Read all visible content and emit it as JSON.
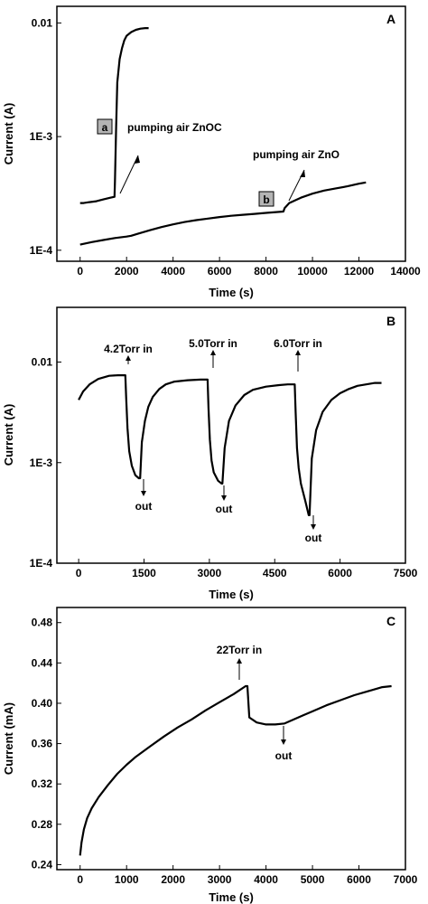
{
  "chart_data": [
    {
      "type": "line",
      "panel_label": "A",
      "xlabel": "Time (s)",
      "ylabel": "Current (A)",
      "y_scale": "log",
      "xlim": [
        -1000,
        14000
      ],
      "ylim": [
        8e-05,
        0.014
      ],
      "x_ticks": [
        0,
        2000,
        4000,
        6000,
        8000,
        10000,
        12000,
        14000
      ],
      "x_tick_labels": [
        "0",
        "2000",
        "4000",
        "6000",
        "8000",
        "10000",
        "12000",
        "14000"
      ],
      "y_ticks": [
        0.0001,
        0.001,
        0.01
      ],
      "y_tick_labels": [
        "1E-4",
        "1E-3",
        "0.01"
      ],
      "series": [
        {
          "x": [
            0,
            150,
            400,
            700,
            1000,
            1300,
            1480,
            1500,
            1550,
            1600,
            1700,
            1800,
            1900,
            2000,
            2200,
            2400,
            2600,
            2800,
            2950
          ],
          "y": [
            0.00026,
            0.00026,
            0.000265,
            0.00027,
            0.00028,
            0.00029,
            0.000295,
            0.0004,
            0.0012,
            0.003,
            0.0048,
            0.006,
            0.007,
            0.0077,
            0.0083,
            0.0087,
            0.0089,
            0.009,
            0.009
          ]
        },
        {
          "x": [
            0,
            500,
            1000,
            1500,
            2000,
            2200,
            2500,
            3000,
            3500,
            4000,
            4500,
            5000,
            5500,
            6000,
            6500,
            7000,
            7500,
            8000,
            8500,
            8750,
            8800,
            9000,
            9500,
            10000,
            10500,
            11000,
            11500,
            12000,
            12300
          ],
          "y": [
            0.000112,
            0.000118,
            0.000123,
            0.000128,
            0.000132,
            0.000134,
            0.00014,
            0.00015,
            0.00016,
            0.000169,
            0.000177,
            0.000184,
            0.00019,
            0.000196,
            0.000201,
            0.000205,
            0.000209,
            0.000213,
            0.000217,
            0.000219,
            0.000235,
            0.00026,
            0.00029,
            0.000315,
            0.000335,
            0.00035,
            0.000365,
            0.000385,
            0.000395
          ]
        }
      ],
      "annotations": [
        {
          "box": "a",
          "text": "pumping air  ZnOC"
        },
        {
          "box": "b",
          "text": "pumping air  ZnO"
        }
      ]
    },
    {
      "type": "line",
      "panel_label": "B",
      "xlabel": "Time (s)",
      "ylabel": "Current (A)",
      "y_scale": "log",
      "xlim": [
        -500,
        7500
      ],
      "ylim": [
        0.0001,
        0.035
      ],
      "x_ticks": [
        0,
        1500,
        3000,
        4500,
        6000,
        7500
      ],
      "x_tick_labels": [
        "0",
        "1500",
        "3000",
        "4500",
        "6000",
        "7500"
      ],
      "y_ticks": [
        0.0001,
        0.001,
        0.01
      ],
      "y_tick_labels": [
        "1E-4",
        "1E-3",
        "0.01"
      ],
      "series": [
        {
          "x": [
            0,
            100,
            250,
            450,
            700,
            900,
            1070,
            1090,
            1120,
            1160,
            1220,
            1300,
            1380,
            1410,
            1450,
            1520,
            1600,
            1700,
            1850,
            2000,
            2200,
            2500,
            2800,
            2960,
            2980,
            3010,
            3050,
            3100,
            3200,
            3280,
            3300,
            3350,
            3450,
            3600,
            3800,
            4000,
            4300,
            4600,
            4800,
            4960,
            4980,
            5010,
            5050,
            5100,
            5200,
            5280,
            5300,
            5350,
            5450,
            5600,
            5800,
            6000,
            6200,
            6400,
            6600,
            6800,
            6950
          ],
          "y": [
            0.0042,
            0.0051,
            0.006,
            0.0068,
            0.0073,
            0.0074,
            0.0074,
            0.0045,
            0.0022,
            0.0013,
            0.00093,
            0.00075,
            0.0007,
            0.0007,
            0.0016,
            0.0026,
            0.0036,
            0.0045,
            0.0054,
            0.006,
            0.0064,
            0.0066,
            0.0067,
            0.0067,
            0.0035,
            0.0017,
            0.00105,
            0.0008,
            0.00066,
            0.00062,
            0.00062,
            0.0014,
            0.0026,
            0.0037,
            0.0047,
            0.0053,
            0.0057,
            0.0059,
            0.006,
            0.006,
            0.0032,
            0.0014,
            0.00088,
            0.00062,
            0.00042,
            0.0003,
            0.0003,
            0.0011,
            0.0021,
            0.0032,
            0.0042,
            0.0049,
            0.0054,
            0.0058,
            0.006,
            0.0062,
            0.0062
          ]
        }
      ],
      "annotations": [
        {
          "text": "4.2Torr in",
          "x": 1070
        },
        {
          "text": "5.0Torr in",
          "x": 2960
        },
        {
          "text": "6.0Torr in",
          "x": 4960
        },
        {
          "text": "out",
          "x": 1400
        },
        {
          "text": "out",
          "x": 3290
        },
        {
          "text": "out",
          "x": 5290
        }
      ]
    },
    {
      "type": "line",
      "panel_label": "C",
      "xlabel": "Time (s)",
      "ylabel": "Current (mA)",
      "xlim": [
        -500,
        7000
      ],
      "ylim": [
        0.235,
        0.495
      ],
      "x_ticks": [
        0,
        1000,
        2000,
        3000,
        4000,
        5000,
        6000,
        7000
      ],
      "x_tick_labels": [
        "0",
        "1000",
        "2000",
        "3000",
        "4000",
        "5000",
        "6000",
        "7000"
      ],
      "y_ticks": [
        0.24,
        0.28,
        0.32,
        0.36,
        0.4,
        0.44,
        0.48
      ],
      "y_tick_labels": [
        "0.24",
        "0.28",
        "0.32",
        "0.36",
        "0.40",
        "0.44",
        "0.48"
      ],
      "series": [
        {
          "x": [
            0,
            30,
            80,
            150,
            250,
            400,
            600,
            800,
            1000,
            1200,
            1500,
            1800,
            2100,
            2400,
            2700,
            3000,
            3300,
            3560,
            3600,
            3640,
            3800,
            4000,
            4200,
            4400,
            4600,
            4800,
            5000,
            5300,
            5600,
            5900,
            6200,
            6500,
            6700
          ],
          "y": [
            0.249,
            0.262,
            0.275,
            0.286,
            0.296,
            0.307,
            0.319,
            0.33,
            0.339,
            0.347,
            0.357,
            0.367,
            0.376,
            0.384,
            0.393,
            0.401,
            0.409,
            0.417,
            0.417,
            0.386,
            0.381,
            0.379,
            0.379,
            0.38,
            0.384,
            0.388,
            0.392,
            0.398,
            0.403,
            0.408,
            0.412,
            0.416,
            0.417
          ]
        }
      ],
      "annotations": [
        {
          "text": "22Torr in",
          "x": 3600
        },
        {
          "text": "out",
          "x": 4450
        }
      ]
    }
  ]
}
